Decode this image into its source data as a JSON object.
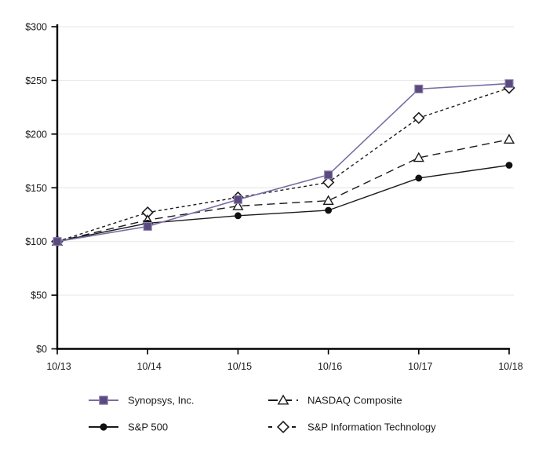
{
  "chart_data": {
    "type": "line",
    "title": "",
    "xlabel": "",
    "ylabel": "",
    "categories": [
      "10/13",
      "10/14",
      "10/15",
      "10/16",
      "10/17",
      "10/18"
    ],
    "series": [
      {
        "name": "Synopsys, Inc.",
        "marker": "filled-square",
        "line_style": "solid",
        "line_color": "#7b6ba3",
        "marker_fill": "#5a4a7d",
        "marker_stroke": "#9185b5",
        "values": [
          100,
          114,
          139,
          162,
          242,
          247
        ]
      },
      {
        "name": "NASDAQ Composite",
        "marker": "open-triangle",
        "line_style": "long-dash",
        "line_color": "#1a1a1a",
        "marker_fill": "#ffffff",
        "marker_stroke": "#1a1a1a",
        "values": [
          100,
          120,
          133,
          138,
          178,
          195
        ]
      },
      {
        "name": "S&P 500",
        "marker": "filled-circle",
        "line_style": "solid",
        "line_color": "#1a1a1a",
        "marker_fill": "#111111",
        "marker_stroke": "#111111",
        "values": [
          100,
          117,
          124,
          129,
          159,
          171
        ]
      },
      {
        "name": "S&P Information Technology",
        "marker": "open-diamond",
        "line_style": "short-dash",
        "line_color": "#1a1a1a",
        "marker_fill": "#ffffff",
        "marker_stroke": "#1a1a1a",
        "values": [
          100,
          127,
          141,
          155,
          215,
          243
        ]
      }
    ],
    "ylim": [
      0,
      300
    ],
    "ytick_labels": [
      "$0",
      "$50",
      "$100",
      "$150",
      "$200",
      "$250",
      "$300"
    ],
    "grid": "horizontal",
    "gridline_color": "#eaeaea",
    "axis_color": "#000000",
    "text_color": "#1a1a1a",
    "legend_position": "bottom-two-column"
  }
}
